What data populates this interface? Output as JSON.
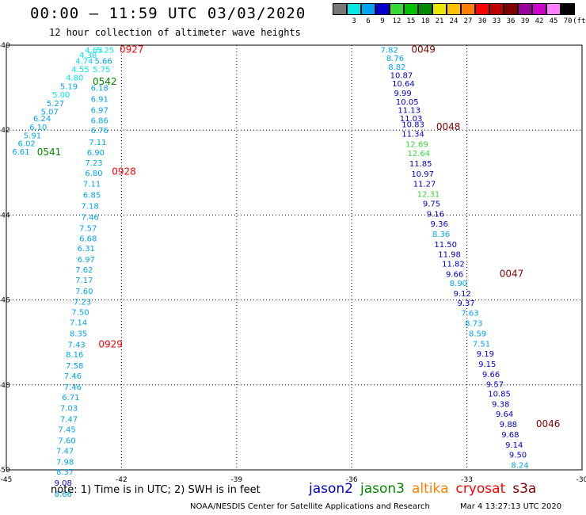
{
  "header": {
    "title": "00:00 – 11:59 UTC 03/03/2020",
    "subtitle": "12 hour collection of altimeter wave heights"
  },
  "scale": {
    "bins": [
      {
        "color": "#777777",
        "label": ""
      },
      {
        "color": "#00e8e8",
        "label": "3"
      },
      {
        "color": "#00a4f0",
        "label": "6"
      },
      {
        "color": "#0000d0",
        "label": "9"
      },
      {
        "color": "#38d838",
        "label": "12"
      },
      {
        "color": "#00c000",
        "label": "15"
      },
      {
        "color": "#008800",
        "label": "18"
      },
      {
        "color": "#e8e800",
        "label": "21"
      },
      {
        "color": "#ffc000",
        "label": "24"
      },
      {
        "color": "#ff8000",
        "label": "27"
      },
      {
        "color": "#ff0000",
        "label": "30"
      },
      {
        "color": "#c00000",
        "label": "33"
      },
      {
        "color": "#800000",
        "label": "36"
      },
      {
        "color": "#990099",
        "label": "39"
      },
      {
        "color": "#cc00cc",
        "label": "42"
      },
      {
        "color": "#ff80ff",
        "label": "45"
      },
      {
        "color": "#000000",
        "label": "70"
      }
    ],
    "unit": "(ft)"
  },
  "chart_data": {
    "type": "map",
    "xlim": [
      -45,
      -30
    ],
    "ylim": [
      -50,
      -40
    ],
    "xticks": [
      "-45",
      "-42",
      "-39",
      "-36",
      "-33",
      "-30"
    ],
    "yticks": [
      "-40",
      "-42",
      "-44",
      "-46",
      "-48",
      "-50"
    ],
    "grid": "dotted",
    "tracks": [
      {
        "name": "west-track",
        "observations": [
          {
            "lon": -42.95,
            "lat": -40.1,
            "v": "4.63",
            "c": "#00e8e8"
          },
          {
            "lon": -42.65,
            "lat": -40.1,
            "v": "5.25",
            "c": "#00e8e8"
          },
          {
            "lon": -43.1,
            "lat": -40.22,
            "v": "4.38",
            "c": "#00e8e8"
          },
          {
            "lon": -43.2,
            "lat": -40.36,
            "v": "4.74",
            "c": "#00e8e8"
          },
          {
            "lon": -42.7,
            "lat": -40.36,
            "v": "5.66",
            "c": "#00a4f0"
          },
          {
            "lon": -43.3,
            "lat": -40.56,
            "v": "4.55",
            "c": "#00e8e8"
          },
          {
            "lon": -42.75,
            "lat": -40.56,
            "v": "5.75",
            "c": "#00e8e8"
          },
          {
            "lon": -43.45,
            "lat": -40.76,
            "v": "4.80",
            "c": "#00e8e8"
          },
          {
            "lon": -43.6,
            "lat": -40.96,
            "v": "5.19",
            "c": "#00a4f0"
          },
          {
            "lon": -42.8,
            "lat": -41.0,
            "v": "6.18",
            "c": "#00a4f0"
          },
          {
            "lon": -43.8,
            "lat": -41.16,
            "v": "5.00",
            "c": "#00e8e8"
          },
          {
            "lon": -42.8,
            "lat": -41.26,
            "v": "6.91",
            "c": "#00a4f0"
          },
          {
            "lon": -43.95,
            "lat": -41.36,
            "v": "5.27",
            "c": "#00a4f0"
          },
          {
            "lon": -44.1,
            "lat": -41.56,
            "v": "5.07",
            "c": "#00a4f0"
          },
          {
            "lon": -42.8,
            "lat": -41.52,
            "v": "6.97",
            "c": "#00a4f0"
          },
          {
            "lon": -44.3,
            "lat": -41.72,
            "v": "6.24",
            "c": "#00a4f0"
          },
          {
            "lon": -42.8,
            "lat": -41.76,
            "v": "6.86",
            "c": "#00a4f0"
          },
          {
            "lon": -44.4,
            "lat": -41.92,
            "v": "6.10",
            "c": "#00a4f0"
          },
          {
            "lon": -44.55,
            "lat": -42.12,
            "v": "5.91",
            "c": "#00a4f0"
          },
          {
            "lon": -42.8,
            "lat": -42.0,
            "v": "6.76",
            "c": "#00a4f0"
          },
          {
            "lon": -44.7,
            "lat": -42.3,
            "v": "6.02",
            "c": "#00a4f0"
          },
          {
            "lon": -42.85,
            "lat": -42.28,
            "v": "7.11",
            "c": "#00a4f0"
          },
          {
            "lon": -44.85,
            "lat": -42.5,
            "v": "6.61",
            "c": "#00a4f0"
          },
          {
            "lon": -42.9,
            "lat": -42.52,
            "v": "6.90",
            "c": "#00a4f0"
          },
          {
            "lon": -42.95,
            "lat": -42.76,
            "v": "7.23",
            "c": "#00a4f0"
          },
          {
            "lon": -42.95,
            "lat": -43.0,
            "v": "6.80",
            "c": "#00a4f0"
          },
          {
            "lon": -43.0,
            "lat": -43.26,
            "v": "7.11",
            "c": "#00a4f0"
          },
          {
            "lon": -43.0,
            "lat": -43.52,
            "v": "6.85",
            "c": "#00a4f0"
          },
          {
            "lon": -43.05,
            "lat": -43.78,
            "v": "7.18",
            "c": "#00a4f0"
          },
          {
            "lon": -43.05,
            "lat": -44.04,
            "v": "7.46",
            "c": "#00a4f0"
          },
          {
            "lon": -43.1,
            "lat": -44.3,
            "v": "7.57",
            "c": "#00a4f0"
          },
          {
            "lon": -43.1,
            "lat": -44.54,
            "v": "6.68",
            "c": "#00a4f0"
          },
          {
            "lon": -43.15,
            "lat": -44.78,
            "v": "6.31",
            "c": "#00a4f0"
          },
          {
            "lon": -43.15,
            "lat": -45.04,
            "v": "6.97",
            "c": "#00a4f0"
          },
          {
            "lon": -43.2,
            "lat": -45.28,
            "v": "7.62",
            "c": "#00a4f0"
          },
          {
            "lon": -43.2,
            "lat": -45.52,
            "v": "7.17",
            "c": "#00a4f0"
          },
          {
            "lon": -43.2,
            "lat": -45.78,
            "v": "7.60",
            "c": "#00a4f0"
          },
          {
            "lon": -43.25,
            "lat": -46.04,
            "v": "7.23",
            "c": "#00a4f0"
          },
          {
            "lon": -43.3,
            "lat": -46.28,
            "v": "7.50",
            "c": "#00a4f0"
          },
          {
            "lon": -43.35,
            "lat": -46.52,
            "v": "7.14",
            "c": "#00a4f0"
          },
          {
            "lon": -43.35,
            "lat": -46.78,
            "v": "8.35",
            "c": "#00a4f0"
          },
          {
            "lon": -43.4,
            "lat": -47.04,
            "v": "7.43",
            "c": "#00a4f0"
          },
          {
            "lon": -43.45,
            "lat": -47.28,
            "v": "8.16",
            "c": "#00a4f0"
          },
          {
            "lon": -43.45,
            "lat": -47.54,
            "v": "7.58",
            "c": "#00a4f0"
          },
          {
            "lon": -43.5,
            "lat": -47.78,
            "v": "7.46",
            "c": "#00a4f0"
          },
          {
            "lon": -43.5,
            "lat": -48.04,
            "v": "7.46",
            "c": "#00a4f0"
          },
          {
            "lon": -43.55,
            "lat": -48.28,
            "v": "6.71",
            "c": "#00a4f0"
          },
          {
            "lon": -43.6,
            "lat": -48.54,
            "v": "7.03",
            "c": "#00a4f0"
          },
          {
            "lon": -43.6,
            "lat": -48.8,
            "v": "7.47",
            "c": "#00a4f0"
          },
          {
            "lon": -43.65,
            "lat": -49.04,
            "v": "7.45",
            "c": "#00a4f0"
          },
          {
            "lon": -43.65,
            "lat": -49.3,
            "v": "7.60",
            "c": "#00a4f0"
          },
          {
            "lon": -43.7,
            "lat": -49.54,
            "v": "7.47",
            "c": "#00a4f0"
          },
          {
            "lon": -43.7,
            "lat": -49.8,
            "v": "7.98",
            "c": "#00a4f0"
          },
          {
            "lon": -43.7,
            "lat": -50.04,
            "v": "8.37",
            "c": "#00a4f0"
          },
          {
            "lon": -43.75,
            "lat": -50.3,
            "v": "9.08",
            "c": "#0000d0"
          },
          {
            "lon": -43.75,
            "lat": -50.56,
            "v": "8.66",
            "c": "#00a4f0"
          }
        ],
        "time_labels": [
          {
            "lon": -42.05,
            "lat": -40.1,
            "t": "0927",
            "c": "#ff0000"
          },
          {
            "lon": -42.75,
            "lat": -40.86,
            "t": "0542",
            "c": "#008800"
          },
          {
            "lon": -44.2,
            "lat": -42.52,
            "t": "0541",
            "c": "#008800"
          },
          {
            "lon": -42.25,
            "lat": -42.98,
            "t": "0928",
            "c": "#ff0000"
          },
          {
            "lon": -42.6,
            "lat": -47.04,
            "t": "0929",
            "c": "#ff0000"
          }
        ]
      },
      {
        "name": "east-track",
        "observations": [
          {
            "lon": -35.25,
            "lat": -40.1,
            "v": "7.82",
            "c": "#00a4f0"
          },
          {
            "lon": -35.1,
            "lat": -40.3,
            "v": "8.76",
            "c": "#00a4f0"
          },
          {
            "lon": -35.05,
            "lat": -40.5,
            "v": "8.82",
            "c": "#00a4f0"
          },
          {
            "lon": -35.0,
            "lat": -40.7,
            "v": "10.87",
            "c": "#0000d0"
          },
          {
            "lon": -34.95,
            "lat": -40.9,
            "v": "10.64",
            "c": "#0000d0"
          },
          {
            "lon": -34.9,
            "lat": -41.12,
            "v": "9.99",
            "c": "#0000d0"
          },
          {
            "lon": -34.85,
            "lat": -41.32,
            "v": "10.05",
            "c": "#0000d0"
          },
          {
            "lon": -34.8,
            "lat": -41.52,
            "v": "11.13",
            "c": "#0000d0"
          },
          {
            "lon": -34.75,
            "lat": -41.72,
            "v": "11.03",
            "c": "#0000d0"
          },
          {
            "lon": -34.7,
            "lat": -41.86,
            "v": "10.83",
            "c": "#0000d0"
          },
          {
            "lon": -34.7,
            "lat": -42.08,
            "v": "11.34",
            "c": "#0000d0"
          },
          {
            "lon": -34.6,
            "lat": -42.32,
            "v": "12.69",
            "c": "#38d838"
          },
          {
            "lon": -34.55,
            "lat": -42.54,
            "v": "12.64",
            "c": "#38d838"
          },
          {
            "lon": -34.5,
            "lat": -42.78,
            "v": "11.85",
            "c": "#0000d0"
          },
          {
            "lon": -34.45,
            "lat": -43.02,
            "v": "10.97",
            "c": "#0000d0"
          },
          {
            "lon": -34.4,
            "lat": -43.26,
            "v": "11.27",
            "c": "#0000d0"
          },
          {
            "lon": -34.3,
            "lat": -43.5,
            "v": "12.31",
            "c": "#38d838"
          },
          {
            "lon": -34.15,
            "lat": -43.72,
            "v": "9.75",
            "c": "#0000d0"
          },
          {
            "lon": -34.05,
            "lat": -43.96,
            "v": "9.16",
            "c": "#0000d0"
          },
          {
            "lon": -33.95,
            "lat": -44.2,
            "v": "9.36",
            "c": "#0000d0"
          },
          {
            "lon": -33.9,
            "lat": -44.44,
            "v": "8.36",
            "c": "#00a4f0"
          },
          {
            "lon": -33.85,
            "lat": -44.68,
            "v": "11.50",
            "c": "#0000d0"
          },
          {
            "lon": -33.75,
            "lat": -44.92,
            "v": "11.98",
            "c": "#0000d0"
          },
          {
            "lon": -33.65,
            "lat": -45.14,
            "v": "11.82",
            "c": "#0000d0"
          },
          {
            "lon": -33.55,
            "lat": -45.38,
            "v": "9.66",
            "c": "#0000d0"
          },
          {
            "lon": -33.45,
            "lat": -45.6,
            "v": "8.90",
            "c": "#00a4f0"
          },
          {
            "lon": -33.35,
            "lat": -45.84,
            "v": "9.12",
            "c": "#0000d0"
          },
          {
            "lon": -33.25,
            "lat": -46.06,
            "v": "9.37",
            "c": "#0000d0"
          },
          {
            "lon": -33.15,
            "lat": -46.3,
            "v": "7.63",
            "c": "#00a4f0"
          },
          {
            "lon": -33.05,
            "lat": -46.54,
            "v": "8.73",
            "c": "#00a4f0"
          },
          {
            "lon": -32.95,
            "lat": -46.78,
            "v": "8.59",
            "c": "#00a4f0"
          },
          {
            "lon": -32.85,
            "lat": -47.02,
            "v": "7.51",
            "c": "#00a4f0"
          },
          {
            "lon": -32.75,
            "lat": -47.26,
            "v": "9.19",
            "c": "#0000d0"
          },
          {
            "lon": -32.7,
            "lat": -47.5,
            "v": "9.15",
            "c": "#0000d0"
          },
          {
            "lon": -32.6,
            "lat": -47.74,
            "v": "9.66",
            "c": "#0000d0"
          },
          {
            "lon": -32.5,
            "lat": -47.98,
            "v": "9.57",
            "c": "#0000d0"
          },
          {
            "lon": -32.45,
            "lat": -48.2,
            "v": "10.85",
            "c": "#0000d0"
          },
          {
            "lon": -32.35,
            "lat": -48.44,
            "v": "9.38",
            "c": "#0000d0"
          },
          {
            "lon": -32.25,
            "lat": -48.68,
            "v": "9.64",
            "c": "#0000d0"
          },
          {
            "lon": -32.15,
            "lat": -48.92,
            "v": "9.88",
            "c": "#0000d0"
          },
          {
            "lon": -32.1,
            "lat": -49.16,
            "v": "9.68",
            "c": "#0000d0"
          },
          {
            "lon": -32.0,
            "lat": -49.4,
            "v": "9.14",
            "c": "#0000d0"
          },
          {
            "lon": -31.9,
            "lat": -49.64,
            "v": "9.50",
            "c": "#0000d0"
          },
          {
            "lon": -31.85,
            "lat": -49.88,
            "v": "8.24",
            "c": "#00a4f0"
          }
        ],
        "time_labels": [
          {
            "lon": -34.45,
            "lat": -40.1,
            "t": "0049",
            "c": "#800000"
          },
          {
            "lon": -33.8,
            "lat": -41.92,
            "t": "0048",
            "c": "#800000"
          },
          {
            "lon": -32.15,
            "lat": -45.38,
            "t": "0047",
            "c": "#800000"
          },
          {
            "lon": -31.2,
            "lat": -48.92,
            "t": "0046",
            "c": "#800000"
          }
        ]
      }
    ]
  },
  "footer": {
    "note": "note: 1) Time is in UTC; 2) SWH is in feet",
    "satellites": [
      {
        "name": "jason2",
        "color": "#0000d0"
      },
      {
        "name": "jason3",
        "color": "#008800"
      },
      {
        "name": "altika",
        "color": "#ff8000"
      },
      {
        "name": "cryosat",
        "color": "#ff0000"
      },
      {
        "name": "s3a",
        "color": "#800000"
      }
    ],
    "credit": "NOAA/NESDIS Center for Satellite Applications and Research",
    "timestamp": "Mar  4 13:27:13 UTC 2020"
  }
}
